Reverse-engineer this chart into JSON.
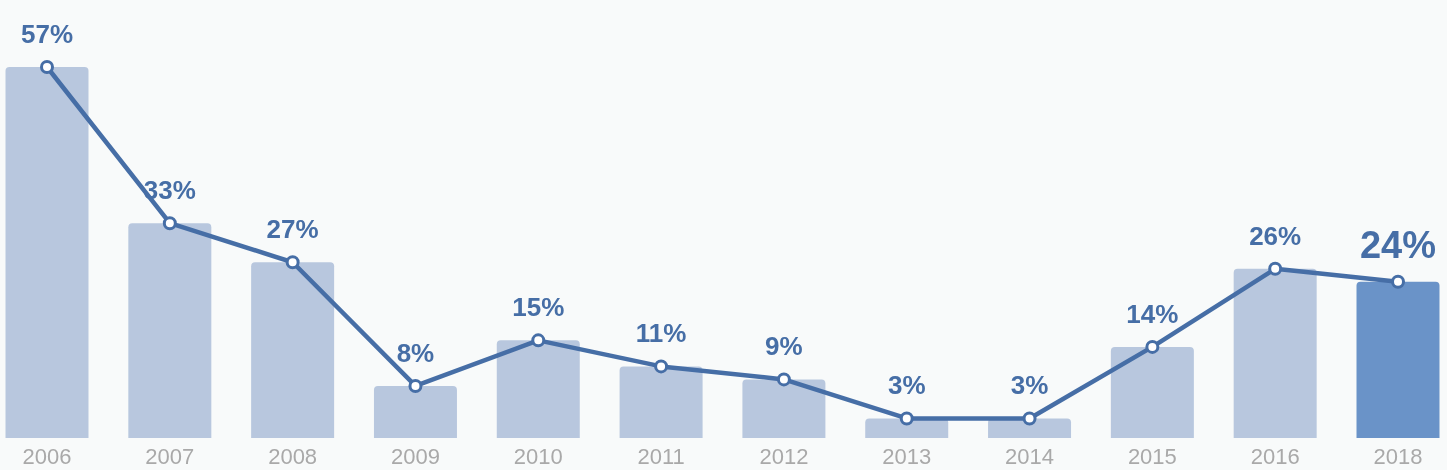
{
  "chart_data": {
    "type": "bar",
    "categories": [
      "2006",
      "2007",
      "2008",
      "2009",
      "2010",
      "2011",
      "2012",
      "2013",
      "2014",
      "2015",
      "2016",
      "2018"
    ],
    "series": [
      {
        "colors": [
          "#b8c7de",
          "#b8c7de",
          "#b8c7de",
          "#b8c7de",
          "#b8c7de",
          "#b8c7de",
          "#b8c7de",
          "#b8c7de",
          "#b8c7de",
          "#b8c7de",
          "#b8c7de",
          "#6a93c8"
        ],
        "values": [
          57,
          33,
          27,
          8,
          15,
          11,
          9,
          3,
          3,
          14,
          26,
          24
        ]
      },
      {
        "type": "line",
        "color": "#466ea6",
        "values": [
          57,
          33,
          27,
          8,
          15,
          11,
          9,
          3,
          3,
          14,
          26,
          24
        ],
        "value_labels": [
          "57%",
          "33%",
          "27%",
          "8%",
          "15%",
          "11%",
          "9%",
          "3%",
          "3%",
          "14%",
          "26%",
          "24%"
        ]
      }
    ],
    "marker": "circle",
    "line_style": "solid"
  }
}
